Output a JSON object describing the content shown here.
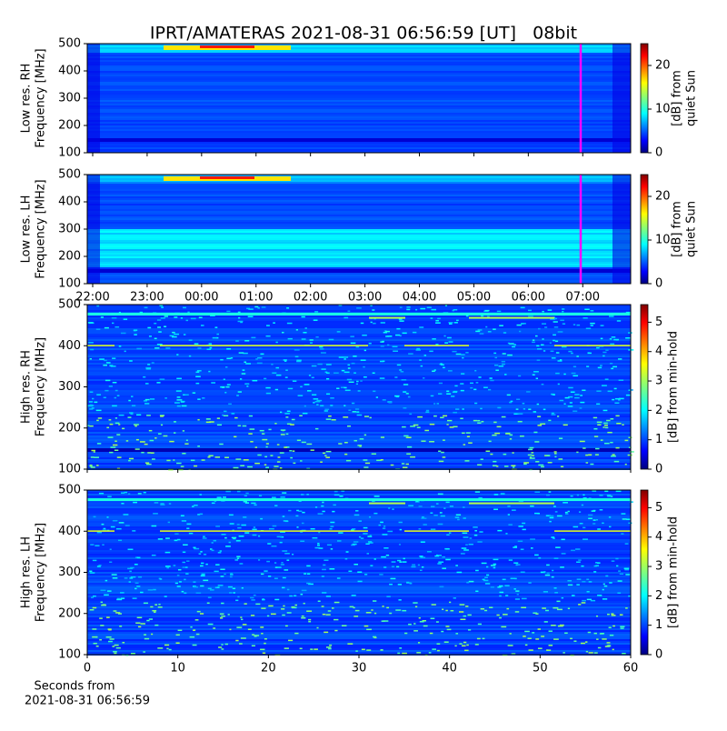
{
  "chart_data": [
    {
      "type": "spectrogram",
      "title": "IPRT/AMATERAS 2021-08-31 06:56:59 [UT]   08bit",
      "ylabel": [
        "Low res. RH",
        "Frequency [MHz]"
      ],
      "ylim": [
        100,
        500
      ],
      "yticks": [
        100,
        200,
        300,
        400,
        500
      ],
      "xlim": [
        21.9,
        31.88
      ],
      "xticks": [
        22,
        23,
        24,
        25,
        26,
        27,
        28,
        29,
        30,
        31
      ],
      "colorbar_label": [
        "[dB] from",
        "quiet Sun"
      ],
      "clim": [
        0,
        25
      ],
      "cticks": [
        0,
        10,
        20
      ],
      "colormap": "jet"
    },
    {
      "type": "spectrogram",
      "ylabel": [
        "Low res. LH",
        "Frequency [MHz]"
      ],
      "ylim": [
        100,
        500
      ],
      "yticks": [
        100,
        200,
        300,
        400,
        500
      ],
      "xlim": [
        21.9,
        31.88
      ],
      "xticks": [
        {
          "value": 22,
          "label": "22:00"
        },
        {
          "value": 23,
          "label": "23:00"
        },
        {
          "value": 24,
          "label": "00:00"
        },
        {
          "value": 25,
          "label": "01:00"
        },
        {
          "value": 26,
          "label": "02:00"
        },
        {
          "value": 27,
          "label": "03:00"
        },
        {
          "value": 28,
          "label": "04:00"
        },
        {
          "value": 29,
          "label": "05:00"
        },
        {
          "value": 30,
          "label": "06:00"
        },
        {
          "value": 31,
          "label": "07:00"
        }
      ],
      "colorbar_label": [
        "[dB] from",
        "quiet Sun"
      ],
      "clim": [
        0,
        25
      ],
      "cticks": [
        0,
        10,
        20
      ],
      "colormap": "jet"
    },
    {
      "type": "spectrogram",
      "ylabel": [
        "High res. RH",
        "Frequency [MHz]"
      ],
      "ylim": [
        100,
        500
      ],
      "yticks": [
        100,
        200,
        300,
        400,
        500
      ],
      "xlim": [
        0,
        60
      ],
      "xticks": [
        0,
        10,
        20,
        30,
        40,
        50,
        60
      ],
      "xtick_labels": false,
      "colorbar_label": [
        "[dB] from min-hold"
      ],
      "clim": [
        0,
        5.6
      ],
      "cticks": [
        0,
        1,
        2,
        3,
        4,
        5
      ],
      "colormap": "jet"
    },
    {
      "type": "spectrogram",
      "ylabel": [
        "High res. LH",
        "Frequency [MHz]"
      ],
      "ylim": [
        100,
        500
      ],
      "yticks": [
        100,
        200,
        300,
        400,
        500
      ],
      "xlim": [
        0,
        60
      ],
      "xticks": [
        0,
        10,
        20,
        30,
        40,
        50,
        60
      ],
      "xtick_labels": true,
      "xlabel": [
        "Seconds from",
        "2021-08-31 06:56:59"
      ],
      "colorbar_label": [
        "[dB] from min-hold"
      ],
      "clim": [
        0,
        5.6
      ],
      "cticks": [
        0,
        1,
        2,
        3,
        4,
        5
      ],
      "colormap": "jet"
    }
  ]
}
